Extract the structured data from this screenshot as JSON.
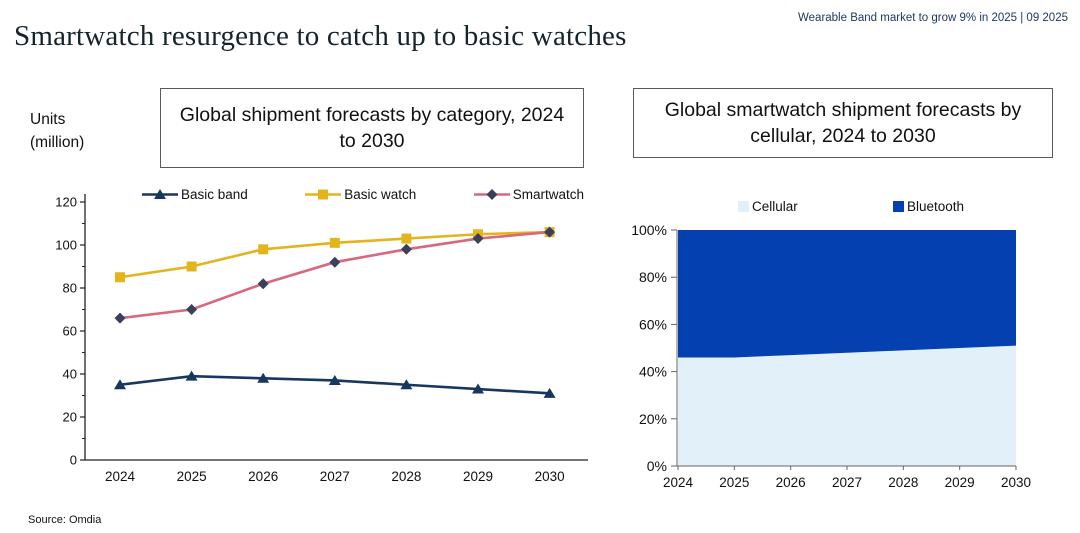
{
  "header": {
    "title": "Smartwatch resurgence to catch up to basic watches",
    "note": "Wearable Band market to grow 9% in 2025 | 09 2025"
  },
  "labels": {
    "units_line1": "Units",
    "units_line2": "(million)"
  },
  "footer": {
    "source": "Source: Omdia"
  },
  "chart_data": [
    {
      "type": "line",
      "title": "Global shipment forecasts by category, 2024 to 2030",
      "ylabel": "Units (million)",
      "categories": [
        "2024",
        "2025",
        "2026",
        "2027",
        "2028",
        "2029",
        "2030"
      ],
      "series": [
        {
          "name": "Basic band",
          "marker": "triangle",
          "color": "#17375E",
          "values": [
            35,
            39,
            38,
            37,
            35,
            33,
            31
          ]
        },
        {
          "name": "Basic watch",
          "marker": "square",
          "color": "#E4B41F",
          "values": [
            85,
            90,
            98,
            101,
            103,
            105,
            106
          ]
        },
        {
          "name": "Smartwatch",
          "marker": "diamond",
          "color": "#D6697D",
          "marker_color": "#3A3F5C",
          "values": [
            66,
            70,
            82,
            92,
            98,
            103,
            106
          ]
        }
      ],
      "ylim": [
        0,
        120
      ],
      "yticks": [
        "0",
        "20",
        "40",
        "60",
        "80",
        "100",
        "120"
      ],
      "grid": false,
      "legend_position": "top"
    },
    {
      "type": "area",
      "title": "Global smartwatch shipment forecasts by cellular, 2024 to 2030",
      "categories": [
        "2024",
        "2025",
        "2026",
        "2027",
        "2028",
        "2029",
        "2030"
      ],
      "series": [
        {
          "name": "Cellular",
          "color": "#E2F0FA",
          "values": [
            46,
            46,
            47,
            48,
            49,
            50,
            51
          ]
        },
        {
          "name": "Bluetooth",
          "color": "#0540B0",
          "values": [
            54,
            54,
            53,
            52,
            51,
            50,
            49
          ]
        }
      ],
      "ylim": [
        0,
        100
      ],
      "yticks": [
        "0%",
        "20%",
        "40%",
        "60%",
        "80%",
        "100%"
      ],
      "grid": false,
      "legend_position": "top",
      "stacked_to_100": true
    }
  ]
}
